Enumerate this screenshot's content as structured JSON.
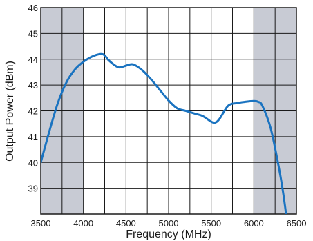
{
  "chart_data": {
    "type": "line",
    "title": "",
    "xlabel": "Frequency (MHz)",
    "ylabel": "Output Power (dBm)",
    "xlim": [
      3500,
      6500
    ],
    "ylim": [
      38,
      46
    ],
    "x_ticks": [
      3500,
      4000,
      4500,
      5000,
      5500,
      6000,
      6500
    ],
    "y_ticks": [
      39,
      40,
      41,
      42,
      43,
      44,
      45,
      46
    ],
    "x_grid_step": 250,
    "grid": true,
    "shaded_bands": [
      [
        3500,
        4000
      ],
      [
        6000,
        6500
      ]
    ],
    "colors": {
      "line": "#1a73c0",
      "band": "#c8cbd4",
      "grid": "#1a1a1a"
    },
    "series": [
      {
        "x": [
          3500,
          3600,
          3700,
          3800,
          3900,
          4000,
          4100,
          4200,
          4250,
          4300,
          4400,
          4450,
          4500,
          4550,
          4600,
          4700,
          4800,
          4900,
          5000,
          5100,
          5200,
          5300,
          5400,
          5500,
          5550,
          5600,
          5700,
          5800,
          5900,
          6000,
          6050,
          6100,
          6200,
          6300,
          6350,
          6410
        ],
        "y": [
          40.0,
          41.2,
          42.3,
          43.1,
          43.6,
          43.9,
          44.1,
          44.2,
          44.15,
          43.95,
          43.7,
          43.7,
          43.75,
          43.8,
          43.78,
          43.55,
          43.2,
          42.8,
          42.4,
          42.1,
          42.0,
          41.9,
          41.8,
          41.58,
          41.55,
          41.7,
          42.2,
          42.3,
          42.35,
          42.38,
          42.35,
          42.2,
          41.3,
          39.7,
          38.7,
          37.2
        ]
      }
    ]
  }
}
